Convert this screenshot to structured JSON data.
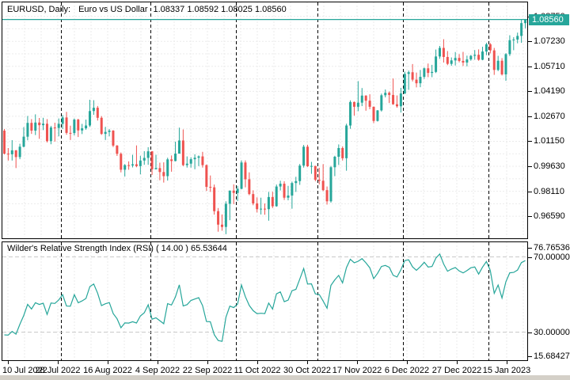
{
  "header": {
    "symbol_period": "EURUSD, Daily:",
    "description": "Euro vs US Dollar",
    "ohlc": "1.08337 1.08592 1.08025 1.08560"
  },
  "colors": {
    "up": "#26a69a",
    "down": "#ef5350",
    "price_line": "#26a69a",
    "badge_bg": "#26a69a",
    "badge_text": "#ffffff",
    "grid": "#ebebeb",
    "level_line": "#c8c8c8",
    "separator": "#000000",
    "rsi_line": "#26a69a",
    "border": "#000000",
    "text": "#000000"
  },
  "price_axis": {
    "labels": [
      "1.08750",
      "1.07230",
      "1.05710",
      "1.04190",
      "1.02670",
      "1.01150",
      "0.99630",
      "0.98110",
      "0.96590"
    ],
    "current": "1.08560",
    "current_value": 1.0856
  },
  "time_axis": {
    "labels": [
      "10 Jul 2022",
      "28 Jul 2022",
      "16 Aug 2022",
      "4 Sep 2022",
      "22 Sep 2022",
      "11 Oct 2022",
      "30 Oct 2022",
      "17 Nov 2022",
      "6 Dec 2022",
      "27 Dec 2022",
      "15 Jan 2023"
    ]
  },
  "rsi_panel": {
    "title": "Wilder's Relative Strength Index (RSI) ( 14.00 ) 65.53644",
    "period": "14.00",
    "current": "65.53644",
    "labels": [
      {
        "text": "76.76536",
        "value": 76.76536
      },
      {
        "text": "70.00000",
        "value": 70
      },
      {
        "text": "30.00000",
        "value": 30
      },
      {
        "text": "15.68427",
        "value": 15.68427
      }
    ],
    "levels": [
      70,
      30
    ]
  },
  "chart_data": {
    "type": "candlestick",
    "symbol": "EURUSD",
    "timeframe": "Daily",
    "title": "EURUSD, Daily: Euro vs US Dollar",
    "last_ohlc": {
      "open": 1.08337,
      "high": 1.08592,
      "low": 1.08025,
      "close": 1.0856
    },
    "price_range": {
      "min": 0.9525,
      "max": 1.096
    },
    "grid": {
      "price_step": 0.0152,
      "first_price_label": 1.0875
    },
    "columns": [
      "date",
      "open",
      "high",
      "low",
      "close"
    ],
    "candles": [
      [
        "2022-07-11",
        1.018,
        1.019,
        1.0035,
        1.004
      ],
      [
        "2022-07-12",
        1.004,
        1.0074,
        0.9998,
        1.0036
      ],
      [
        "2022-07-13",
        1.0036,
        1.0122,
        0.9998,
        1.006
      ],
      [
        "2022-07-14",
        1.006,
        1.0062,
        0.9952,
        1.0019
      ],
      [
        "2022-07-15",
        1.0019,
        1.01,
        1.0006,
        1.0082
      ],
      [
        "2022-07-18",
        1.0082,
        1.0201,
        1.0078,
        1.0143
      ],
      [
        "2022-07-19",
        1.0143,
        1.0269,
        1.0121,
        1.0227
      ],
      [
        "2022-07-20",
        1.0227,
        1.025,
        1.016,
        1.018
      ],
      [
        "2022-07-21",
        1.018,
        1.0279,
        1.0153,
        1.0229
      ],
      [
        "2022-07-22",
        1.0229,
        1.0257,
        1.013,
        1.0213
      ],
      [
        "2022-07-25",
        1.0213,
        1.0258,
        1.0183,
        1.0222
      ],
      [
        "2022-07-26",
        1.0222,
        1.025,
        1.0108,
        1.0116
      ],
      [
        "2022-07-27",
        1.0116,
        1.0209,
        1.0097,
        1.0199
      ],
      [
        "2022-07-28",
        1.0199,
        1.0228,
        1.0113,
        1.0196
      ],
      [
        "2022-07-29",
        1.0196,
        1.0254,
        1.0145,
        1.0221
      ],
      [
        "2022-08-01",
        1.0221,
        1.0275,
        1.019,
        1.026
      ],
      [
        "2022-08-02",
        1.026,
        1.0294,
        1.0155,
        1.0166
      ],
      [
        "2022-08-03",
        1.0166,
        1.021,
        1.0123,
        1.0165
      ],
      [
        "2022-08-04",
        1.0165,
        1.0254,
        1.0151,
        1.0247
      ],
      [
        "2022-08-05",
        1.0247,
        1.0252,
        1.0141,
        1.0181
      ],
      [
        "2022-08-08",
        1.0181,
        1.0221,
        1.0159,
        1.0194
      ],
      [
        "2022-08-09",
        1.0194,
        1.0247,
        1.0185,
        1.0211
      ],
      [
        "2022-08-10",
        1.0211,
        1.0368,
        1.0202,
        1.0299
      ],
      [
        "2022-08-11",
        1.0299,
        1.0365,
        1.0276,
        1.0319
      ],
      [
        "2022-08-12",
        1.0319,
        1.033,
        1.0241,
        1.0258
      ],
      [
        "2022-08-15",
        1.0258,
        1.0268,
        1.0154,
        1.016
      ],
      [
        "2022-08-16",
        1.016,
        1.0203,
        1.0123,
        1.0172
      ],
      [
        "2022-08-17",
        1.0172,
        1.019,
        1.0145,
        1.018
      ],
      [
        "2022-08-18",
        1.018,
        1.0183,
        1.008,
        1.0089
      ],
      [
        "2022-08-19",
        1.0089,
        1.0092,
        1.0026,
        1.0039
      ],
      [
        "2022-08-22",
        1.0039,
        1.0047,
        0.9926,
        0.9942
      ],
      [
        "2022-08-23",
        0.9942,
        0.9976,
        0.9901,
        0.997
      ],
      [
        "2022-08-24",
        0.997,
        0.9993,
        0.9942,
        0.9968
      ],
      [
        "2022-08-25",
        0.9968,
        1.0033,
        0.9956,
        0.9975
      ],
      [
        "2022-08-26",
        0.9975,
        1.009,
        0.9957,
        0.9964
      ],
      [
        "2022-08-29",
        0.9964,
        1.0027,
        0.9914,
        0.9998
      ],
      [
        "2022-08-30",
        0.9998,
        1.0055,
        0.9972,
        1.0014
      ],
      [
        "2022-08-31",
        1.0014,
        1.0079,
        0.9972,
        1.0054
      ],
      [
        "2022-09-01",
        1.0054,
        1.0055,
        0.991,
        0.9945
      ],
      [
        "2022-09-02",
        0.9945,
        1.0033,
        0.9944,
        0.9952
      ],
      [
        "2022-09-05",
        0.9952,
        0.9985,
        0.9878,
        0.9928
      ],
      [
        "2022-09-06",
        0.9928,
        0.9987,
        0.9864,
        0.9903
      ],
      [
        "2022-09-07",
        0.9903,
        1.0015,
        0.9876,
        1.0005
      ],
      [
        "2022-09-08",
        1.0005,
        1.0029,
        0.993,
        0.9995
      ],
      [
        "2022-09-09",
        0.9995,
        1.0113,
        0.9993,
        1.004
      ],
      [
        "2022-09-12",
        1.004,
        1.0198,
        1.004,
        1.012
      ],
      [
        "2022-09-13",
        1.012,
        1.0187,
        0.9964,
        0.997
      ],
      [
        "2022-09-14",
        0.997,
        1.0023,
        0.9955,
        0.9979
      ],
      [
        "2022-09-15",
        0.9979,
        1.0018,
        0.9955,
        1.0006
      ],
      [
        "2022-09-16",
        1.0006,
        1.0036,
        0.9945,
        1.0015
      ],
      [
        "2022-09-19",
        1.0015,
        1.0029,
        0.9964,
        1.0023
      ],
      [
        "2022-09-20",
        1.0023,
        1.0051,
        0.9955,
        0.997
      ],
      [
        "2022-09-21",
        0.997,
        0.9974,
        0.9813,
        0.9838
      ],
      [
        "2022-09-22",
        0.9838,
        0.9907,
        0.9807,
        0.9835
      ],
      [
        "2022-09-23",
        0.9835,
        0.9852,
        0.9669,
        0.969
      ],
      [
        "2022-09-26",
        0.969,
        0.9709,
        0.9565,
        0.9608
      ],
      [
        "2022-09-27",
        0.9608,
        0.967,
        0.9571,
        0.9594
      ],
      [
        "2022-09-28",
        0.9594,
        0.975,
        0.955,
        0.9735
      ],
      [
        "2022-09-29",
        0.9735,
        0.9816,
        0.9635,
        0.9815
      ],
      [
        "2022-09-30",
        0.9815,
        0.9853,
        0.9733,
        0.9801
      ],
      [
        "2022-10-03",
        0.9801,
        0.9844,
        0.9752,
        0.9826
      ],
      [
        "2022-10-04",
        0.9826,
        0.9999,
        0.9823,
        0.9986
      ],
      [
        "2022-10-05",
        0.9986,
        0.9999,
        0.9835,
        0.9884
      ],
      [
        "2022-10-06",
        0.9884,
        0.9926,
        0.9787,
        0.9794
      ],
      [
        "2022-10-07",
        0.9794,
        0.9817,
        0.9726,
        0.9737
      ],
      [
        "2022-10-10",
        0.9737,
        0.9774,
        0.9682,
        0.9702
      ],
      [
        "2022-10-11",
        0.9702,
        0.9772,
        0.967,
        0.9705
      ],
      [
        "2022-10-12",
        0.9705,
        0.9737,
        0.9668,
        0.9702
      ],
      [
        "2022-10-13",
        0.9702,
        0.9807,
        0.9632,
        0.9776
      ],
      [
        "2022-10-14",
        0.9776,
        0.9808,
        0.9709,
        0.972
      ],
      [
        "2022-10-17",
        0.972,
        0.9852,
        0.9717,
        0.984
      ],
      [
        "2022-10-18",
        0.984,
        0.9875,
        0.9816,
        0.9857
      ],
      [
        "2022-10-19",
        0.9857,
        0.9872,
        0.9758,
        0.9772
      ],
      [
        "2022-10-20",
        0.9772,
        0.9844,
        0.9756,
        0.9785
      ],
      [
        "2022-10-21",
        0.9785,
        0.987,
        0.9705,
        0.9861
      ],
      [
        "2022-10-24",
        0.9861,
        0.9899,
        0.9807,
        0.9873
      ],
      [
        "2022-10-25",
        0.9873,
        0.9977,
        0.985,
        0.9967
      ],
      [
        "2022-10-26",
        0.9967,
        1.0093,
        0.9955,
        1.0082
      ],
      [
        "2022-10-27",
        1.0082,
        1.0094,
        0.9959,
        0.9963
      ],
      [
        "2022-10-28",
        0.9963,
        0.999,
        0.9917,
        0.9965
      ],
      [
        "2022-10-31",
        0.9965,
        0.9966,
        0.9872,
        0.9881
      ],
      [
        "2022-11-01",
        0.9881,
        0.9954,
        0.9853,
        0.9875
      ],
      [
        "2022-11-02",
        0.9875,
        0.9976,
        0.9812,
        0.9818
      ],
      [
        "2022-11-03",
        0.9818,
        0.984,
        0.973,
        0.975
      ],
      [
        "2022-11-04",
        0.975,
        0.9965,
        0.9742,
        0.9957
      ],
      [
        "2022-11-07",
        0.9957,
        1.0027,
        0.9903,
        1.0021
      ],
      [
        "2022-11-08",
        1.0021,
        1.0096,
        0.9971,
        1.0074
      ],
      [
        "2022-11-09",
        1.0074,
        1.0084,
        0.9998,
        1.0012
      ],
      [
        "2022-11-10",
        1.0012,
        1.0222,
        0.9936,
        1.0211
      ],
      [
        "2022-11-11",
        1.0211,
        1.0364,
        1.0191,
        1.0354
      ],
      [
        "2022-11-14",
        1.0354,
        1.0357,
        1.0271,
        1.0325
      ],
      [
        "2022-11-15",
        1.0325,
        1.0481,
        1.0298,
        1.035
      ],
      [
        "2022-11-16",
        1.035,
        1.0439,
        1.0329,
        1.0393
      ],
      [
        "2022-11-17",
        1.0393,
        1.0395,
        1.0301,
        1.0362
      ],
      [
        "2022-11-18",
        1.0362,
        1.0401,
        1.031,
        1.0325
      ],
      [
        "2022-11-21",
        1.0325,
        1.0327,
        1.0226,
        1.0239
      ],
      [
        "2022-11-22",
        1.0239,
        1.0305,
        1.0235,
        1.0303
      ],
      [
        "2022-11-23",
        1.0303,
        1.0405,
        1.0296,
        1.0395
      ],
      [
        "2022-11-24",
        1.0395,
        1.043,
        1.0382,
        1.041
      ],
      [
        "2022-11-25",
        1.041,
        1.0418,
        1.0348,
        1.0397
      ],
      [
        "2022-11-28",
        1.0397,
        1.0497,
        1.0337,
        1.034
      ],
      [
        "2022-11-29",
        1.034,
        1.0394,
        1.0319,
        1.0328
      ],
      [
        "2022-11-30",
        1.0328,
        1.044,
        1.029,
        1.0406
      ],
      [
        "2022-12-01",
        1.0406,
        1.0539,
        1.0402,
        1.0525
      ],
      [
        "2022-12-02",
        1.0525,
        1.0545,
        1.0428,
        1.0535
      ],
      [
        "2022-12-05",
        1.0535,
        1.0585,
        1.0479,
        1.049
      ],
      [
        "2022-12-06",
        1.049,
        1.0533,
        1.0443,
        1.0468
      ],
      [
        "2022-12-07",
        1.0468,
        1.0549,
        1.0444,
        1.0507
      ],
      [
        "2022-12-08",
        1.0507,
        1.0564,
        1.0495,
        1.0559
      ],
      [
        "2022-12-09",
        1.0559,
        1.0588,
        1.0505,
        1.0531
      ],
      [
        "2022-12-12",
        1.0531,
        1.058,
        1.0505,
        1.0537
      ],
      [
        "2022-12-13",
        1.0537,
        1.0673,
        1.053,
        1.0631
      ],
      [
        "2022-12-14",
        1.0631,
        1.0695,
        1.0616,
        1.0683
      ],
      [
        "2022-12-15",
        1.0683,
        1.0736,
        1.0594,
        1.0628
      ],
      [
        "2022-12-16",
        1.0628,
        1.0664,
        1.0578,
        1.0586
      ],
      [
        "2022-12-19",
        1.0586,
        1.0625,
        1.0574,
        1.0607
      ],
      [
        "2022-12-20",
        1.0607,
        1.0658,
        1.0576,
        1.0622
      ],
      [
        "2022-12-21",
        1.0622,
        1.0645,
        1.0595,
        1.0604
      ],
      [
        "2022-12-22",
        1.0604,
        1.0659,
        1.0573,
        1.0594
      ],
      [
        "2022-12-23",
        1.0594,
        1.0636,
        1.0571,
        1.0613
      ],
      [
        "2022-12-26",
        1.0613,
        1.064,
        1.0605,
        1.0635
      ],
      [
        "2022-12-27",
        1.0635,
        1.067,
        1.0611,
        1.0641
      ],
      [
        "2022-12-28",
        1.0641,
        1.0674,
        1.0605,
        1.0611
      ],
      [
        "2022-12-29",
        1.0611,
        1.069,
        1.0608,
        1.0661
      ],
      [
        "2022-12-30",
        1.0661,
        1.0714,
        1.0639,
        1.0705
      ],
      [
        "2023-01-02",
        1.0705,
        1.0713,
        1.065,
        1.0668
      ],
      [
        "2023-01-03",
        1.0668,
        1.0683,
        1.0519,
        1.0549
      ],
      [
        "2023-01-04",
        1.0549,
        1.0635,
        1.0542,
        1.0605
      ],
      [
        "2023-01-05",
        1.0605,
        1.0621,
        1.0515,
        1.0522
      ],
      [
        "2023-01-06",
        1.0522,
        1.0651,
        1.0483,
        1.0645
      ],
      [
        "2023-01-09",
        1.0645,
        1.076,
        1.0634,
        1.073
      ],
      [
        "2023-01-10",
        1.073,
        1.0748,
        1.0669,
        1.0734
      ],
      [
        "2023-01-11",
        1.0734,
        1.0776,
        1.0711,
        1.0756
      ],
      [
        "2023-01-12",
        1.0756,
        1.0858,
        1.0714,
        1.0834
      ],
      [
        "2023-01-13",
        1.08337,
        1.08592,
        1.08025,
        1.0856
      ]
    ],
    "indicator": {
      "name": "Wilder's Relative Strength Index",
      "abbr": "RSI",
      "period": 14,
      "last_value": 65.53644,
      "range": {
        "min": 15.1,
        "max": 77.8
      },
      "scale_labels": [
        76.76536,
        70.0,
        30.0,
        15.68427
      ],
      "overbought": 70,
      "oversold": 30
    }
  }
}
